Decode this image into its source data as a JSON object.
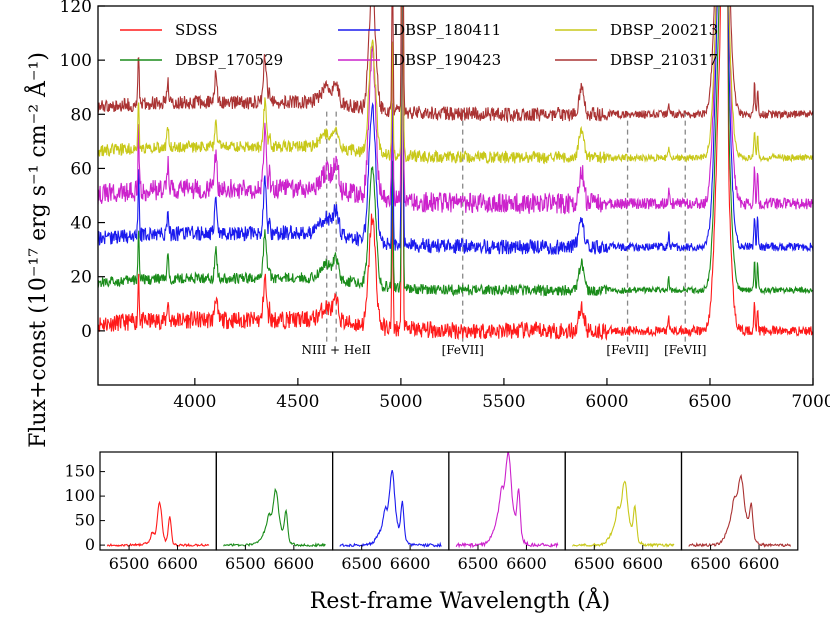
{
  "chart_data": {
    "type": "line",
    "main": {
      "xlim": [
        3530,
        7000
      ],
      "ylim": [
        -20,
        120
      ],
      "xticks": [
        4000,
        4500,
        5000,
        5500,
        6000,
        6500,
        7000
      ],
      "yticks": [
        0,
        20,
        40,
        60,
        80,
        100,
        120
      ],
      "series": [
        {
          "name": "SDSS",
          "color": "#ff1a1a",
          "offset": 0,
          "amp": 1.0,
          "noise": 3.2
        },
        {
          "name": "DBSP_170529",
          "color": "#1a8c1a",
          "offset": 15,
          "amp": 1.1,
          "noise": 2.0
        },
        {
          "name": "DBSP_180411",
          "color": "#1a1aee",
          "offset": 31,
          "amp": 1.25,
          "noise": 2.8
        },
        {
          "name": "DBSP_190423",
          "color": "#cc22cc",
          "offset": 47,
          "amp": 1.35,
          "noise": 3.8
        },
        {
          "name": "DBSP_200213",
          "color": "#c8c81a",
          "offset": 64,
          "amp": 1.0,
          "noise": 2.2
        },
        {
          "name": "DBSP_210317",
          "color": "#aa3333",
          "offset": 80,
          "amp": 1.1,
          "noise": 2.6
        }
      ],
      "legend_location": "top",
      "annotations": [
        {
          "text": "NIII + HeII",
          "x": 4686
        },
        {
          "text": "[FeVII]",
          "x": 5300
        },
        {
          "text": "[FeVII]",
          "x": 6100
        },
        {
          "text": "[FeVII]",
          "x": 6380
        }
      ],
      "dashed_lines_x": [
        4640,
        4686,
        5300,
        6100,
        6380
      ],
      "ylabel": "Flux+const (10⁻¹⁷ erg s⁻¹ cm⁻² Å⁻¹)"
    },
    "insets": {
      "xlim": [
        6440,
        6680
      ],
      "ylim": [
        -10,
        190
      ],
      "xticks": [
        6500,
        6600
      ],
      "yticks": [
        0,
        50,
        100,
        150
      ],
      "panels": [
        {
          "series": "SDSS",
          "color": "#ff1a1a",
          "peak": 87,
          "broad": 12,
          "nii": 55
        },
        {
          "series": "DBSP_170529",
          "color": "#1a8c1a",
          "peak": 110,
          "broad": 55,
          "nii": 55
        },
        {
          "series": "DBSP_180411",
          "color": "#1a1aee",
          "peak": 148,
          "broad": 65,
          "nii": 72
        },
        {
          "series": "DBSP_190423",
          "color": "#cc22cc",
          "peak": 183,
          "broad": 110,
          "nii": 85
        },
        {
          "series": "DBSP_200213",
          "color": "#c8c81a",
          "peak": 128,
          "broad": 70,
          "nii": 60
        },
        {
          "series": "DBSP_210317",
          "color": "#aa3333",
          "peak": 135,
          "broad": 95,
          "nii": 60
        }
      ]
    },
    "xlabel": "Rest-frame Wavelength (Å)"
  }
}
